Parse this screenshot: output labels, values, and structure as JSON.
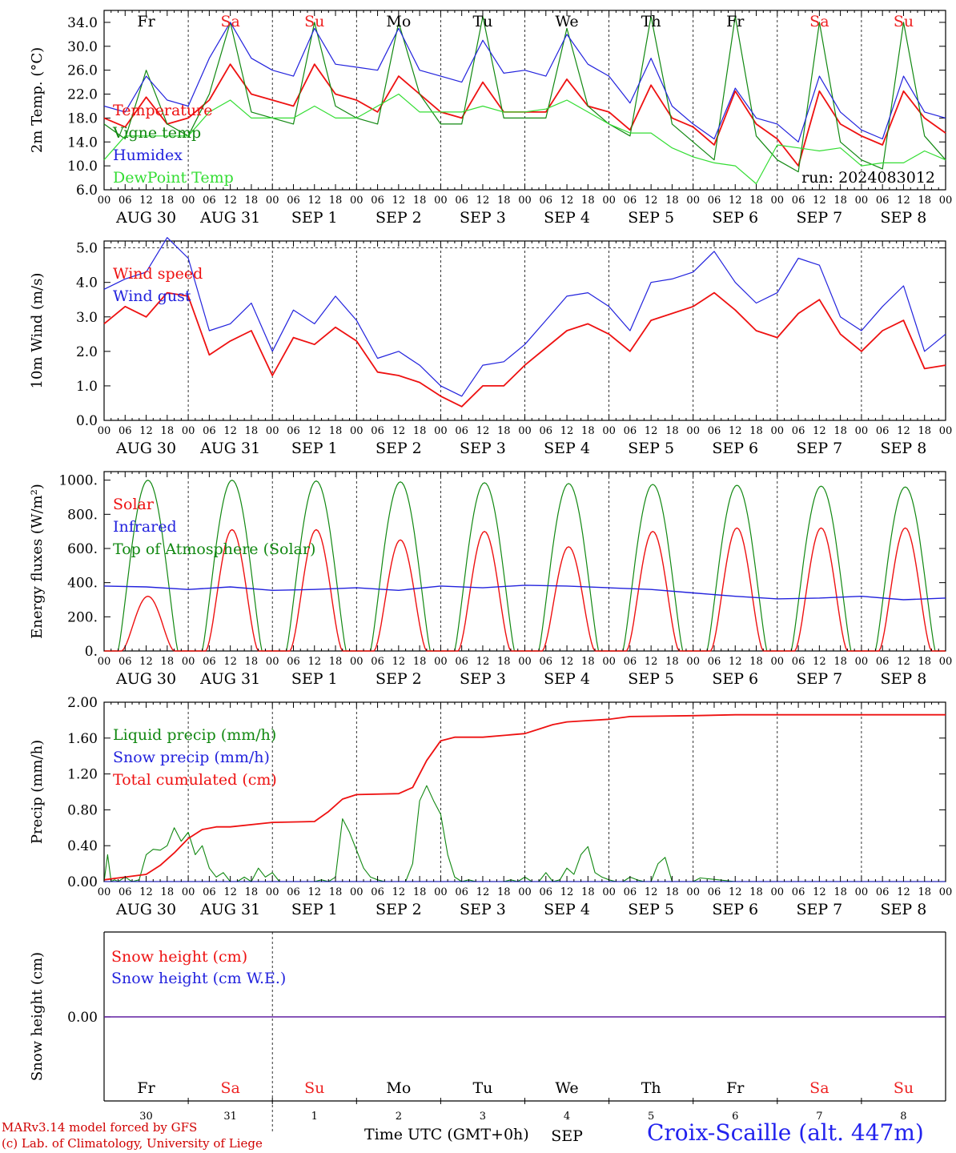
{
  "footer": {
    "credit_line1": "MARv3.14 model forced by GFS",
    "credit_line2": "(c) Lab. of Climatology, University of Liege",
    "x_caption": "Time UTC (GMT+0h)",
    "station": "Croix-Scaille (alt. 447m)",
    "station_color": "#2222ee",
    "credit_color": "#d00000"
  },
  "run_label": "run: 2024083012",
  "day_names": [
    "Fr",
    "Sa",
    "Su",
    "Mo",
    "Tu",
    "We",
    "Th",
    "Fr",
    "Sa",
    "Su"
  ],
  "weekend_days": [
    "Sa",
    "Su"
  ],
  "weekend_color": "#ee2222",
  "date_labels": [
    "AUG 30",
    "AUG 31",
    "SEP  1",
    "SEP  2",
    "SEP  3",
    "SEP  4",
    "SEP  5",
    "SEP  6",
    "SEP  7",
    "SEP  8"
  ],
  "hour_ticks": [
    "00",
    "06",
    "12",
    "18"
  ],
  "bottom_day_numbers": [
    "30",
    "31",
    "1",
    "2",
    "3",
    "4",
    "5",
    "6",
    "7",
    "8"
  ],
  "bottom_month_labels": [
    "SEP"
  ],
  "chart_data": [
    {
      "type": "line",
      "ylabel": "2m Temp. (°C)",
      "ylim": [
        6.0,
        36.0
      ],
      "yticks": [
        "6.0",
        "10.0",
        "14.0",
        "18.0",
        "22.0",
        "26.0",
        "30.0",
        "34.0"
      ],
      "x_hours": [
        0,
        6,
        12,
        18,
        24,
        30,
        36,
        42,
        48,
        54,
        60,
        66,
        72,
        78,
        84,
        90,
        96,
        102,
        108,
        114,
        120,
        126,
        132,
        138,
        144,
        150,
        156,
        162,
        168,
        174,
        180,
        186,
        192,
        198,
        204,
        210,
        216,
        222,
        228,
        234,
        240
      ],
      "series": [
        {
          "name": "Temperature",
          "color": "#ee1111",
          "values": [
            18,
            16.5,
            21.5,
            17,
            18,
            21,
            27,
            22,
            21,
            20,
            27,
            22,
            21,
            19,
            25,
            22,
            19,
            18,
            24,
            19,
            19,
            19,
            24.5,
            20,
            19,
            16,
            23.5,
            18,
            16.5,
            13.5,
            22.5,
            17,
            14.5,
            10,
            22.5,
            17,
            15,
            13.5,
            22.5,
            18,
            15.5
          ]
        },
        {
          "name": "Vigne temp",
          "color": "#118811",
          "values": [
            17,
            14.5,
            26,
            17,
            15,
            22,
            34,
            19,
            18,
            17,
            34,
            20,
            18,
            17,
            34,
            22,
            17,
            17,
            35,
            18,
            18,
            18,
            33,
            20,
            17,
            15,
            35,
            17,
            14,
            11,
            35,
            15,
            11,
            9,
            34,
            14,
            11,
            9.5,
            34,
            15,
            11
          ]
        },
        {
          "name": "Humidex",
          "color": "#2222dd",
          "values": [
            20,
            19,
            25,
            21,
            20,
            28,
            34,
            28,
            26,
            25,
            33,
            27,
            26.5,
            26,
            33,
            26,
            25,
            24,
            31,
            25.5,
            26,
            25,
            32,
            27,
            25,
            20.5,
            28,
            20,
            17,
            14.5,
            23,
            18,
            17,
            14,
            25,
            19,
            16,
            14.5,
            25,
            19,
            18
          ]
        },
        {
          "name": "DewPoint Temp",
          "color": "#33dd33",
          "values": [
            11,
            15,
            15,
            15,
            15,
            19,
            21,
            18,
            18,
            18,
            20,
            18,
            18,
            20,
            22,
            19,
            19,
            19,
            20,
            19,
            19,
            19.5,
            21,
            19,
            17,
            15.5,
            15.5,
            13,
            11.5,
            10.5,
            10,
            7,
            13.5,
            13,
            12.5,
            13,
            10,
            10.5,
            10.5,
            12.5,
            11
          ]
        }
      ],
      "annotation": "run: 2024083012"
    },
    {
      "type": "line",
      "ylabel": "10m Wind (m/s)",
      "ylim": [
        0.0,
        5.2
      ],
      "yticks": [
        "0.0",
        "1.0",
        "2.0",
        "3.0",
        "4.0",
        "5.0"
      ],
      "reference_line": 5.0,
      "x_hours": [
        0,
        6,
        12,
        18,
        24,
        30,
        36,
        42,
        48,
        54,
        60,
        66,
        72,
        78,
        84,
        90,
        96,
        102,
        108,
        114,
        120,
        126,
        132,
        138,
        144,
        150,
        156,
        162,
        168,
        174,
        180,
        186,
        192,
        198,
        204,
        210,
        216,
        222,
        228,
        234,
        240
      ],
      "series": [
        {
          "name": "Wind speed",
          "color": "#ee1111",
          "values": [
            2.8,
            3.3,
            3.0,
            3.7,
            3.6,
            1.9,
            2.3,
            2.6,
            1.3,
            2.4,
            2.2,
            2.7,
            2.3,
            1.4,
            1.3,
            1.1,
            0.7,
            0.4,
            1.0,
            1.0,
            1.6,
            2.1,
            2.6,
            2.8,
            2.5,
            2.0,
            2.9,
            3.1,
            3.3,
            3.7,
            3.2,
            2.6,
            2.4,
            3.1,
            3.5,
            2.5,
            2.0,
            2.6,
            2.9,
            1.5,
            1.6
          ]
        },
        {
          "name": "Wind gust",
          "color": "#2222dd",
          "values": [
            3.8,
            4.1,
            4.3,
            5.3,
            4.7,
            2.6,
            2.8,
            3.4,
            2.0,
            3.2,
            2.8,
            3.6,
            2.9,
            1.8,
            2.0,
            1.6,
            1.0,
            0.7,
            1.6,
            1.7,
            2.2,
            2.9,
            3.6,
            3.7,
            3.3,
            2.6,
            4.0,
            4.1,
            4.3,
            4.9,
            4.0,
            3.4,
            3.7,
            4.7,
            4.5,
            3.0,
            2.6,
            3.3,
            3.9,
            2.0,
            2.5
          ]
        }
      ]
    },
    {
      "type": "line",
      "ylabel": "Energy fluxes (W/m²)",
      "ylim": [
        0,
        1050
      ],
      "yticks": [
        "0.",
        "200.",
        "400.",
        "600.",
        "800.",
        "1000."
      ],
      "series": [
        {
          "name": "Solar",
          "color": "#ee1111",
          "daily_peaks": [
            320,
            710,
            710,
            650,
            700,
            610,
            700,
            720,
            720,
            720
          ]
        },
        {
          "name": "Infrared",
          "color": "#2222dd",
          "x_hours": [
            0,
            12,
            24,
            36,
            48,
            60,
            72,
            84,
            96,
            108,
            120,
            132,
            144,
            156,
            168,
            180,
            192,
            204,
            216,
            228,
            240
          ],
          "values": [
            380,
            375,
            360,
            375,
            355,
            360,
            370,
            355,
            380,
            370,
            385,
            380,
            370,
            360,
            340,
            320,
            305,
            310,
            320,
            300,
            310
          ]
        },
        {
          "name": "Top of Atmosphere (Solar)",
          "color": "#118811",
          "daily_peaks": [
            1000,
            1000,
            995,
            990,
            985,
            980,
            975,
            970,
            965,
            960
          ]
        }
      ]
    },
    {
      "type": "line",
      "ylabel": "Precip (mm/h)",
      "ylim": [
        0.0,
        2.0
      ],
      "yticks": [
        "0.00",
        "0.40",
        "0.80",
        "1.20",
        "1.60",
        "2.00"
      ],
      "series": [
        {
          "name": "Liquid precip (mm/h)",
          "color": "#118811",
          "x_hours": [
            0,
            1,
            2,
            3,
            4,
            6,
            8,
            10,
            12,
            14,
            16,
            18,
            20,
            22,
            24,
            26,
            28,
            30,
            32,
            34,
            36,
            38,
            40,
            42,
            44,
            46,
            48,
            50,
            52,
            54,
            56,
            58,
            60,
            62,
            64,
            66,
            68,
            70,
            72,
            74,
            76,
            78,
            80,
            82,
            84,
            86,
            88,
            90,
            92,
            94,
            96,
            98,
            100,
            102,
            104,
            106,
            108,
            110,
            112,
            114,
            116,
            118,
            120,
            122,
            124,
            126,
            128,
            130,
            132,
            134,
            136,
            138,
            140,
            142,
            144,
            146,
            148,
            150,
            152,
            154,
            156,
            158,
            160,
            162,
            164,
            166,
            168,
            170,
            180,
            240
          ],
          "values": [
            0,
            0.3,
            0,
            0.02,
            0,
            0.05,
            0,
            0.02,
            0.3,
            0.36,
            0.35,
            0.4,
            0.6,
            0.45,
            0.55,
            0.3,
            0.4,
            0.15,
            0.05,
            0.1,
            0,
            0,
            0.05,
            0,
            0.15,
            0.05,
            0.1,
            0,
            0,
            0,
            0,
            0,
            0,
            0.02,
            0,
            0.05,
            0.7,
            0.55,
            0.35,
            0.15,
            0.05,
            0.02,
            0,
            0,
            0,
            0,
            0.2,
            0.9,
            1.07,
            0.9,
            0.75,
            0.3,
            0.05,
            0,
            0.02,
            0,
            0,
            0,
            0,
            0,
            0.02,
            0,
            0.05,
            0,
            0,
            0.1,
            0,
            0.02,
            0.15,
            0.08,
            0.3,
            0.39,
            0.1,
            0.05,
            0.02,
            0,
            0,
            0.05,
            0.02,
            0,
            0,
            0.2,
            0.27,
            0,
            0,
            0,
            0,
            0.04,
            0,
            0
          ]
        },
        {
          "name": "Snow precip (mm/h)",
          "color": "#2222dd",
          "x_hours": [
            0,
            240
          ],
          "values": [
            0,
            0
          ]
        },
        {
          "name": "Total cumulated (cm)",
          "color": "#ee1111",
          "x_hours": [
            0,
            6,
            12,
            16,
            20,
            24,
            28,
            32,
            36,
            48,
            60,
            64,
            68,
            72,
            84,
            88,
            92,
            96,
            100,
            108,
            120,
            124,
            128,
            132,
            136,
            144,
            150,
            168,
            180,
            240
          ],
          "values": [
            0.02,
            0.05,
            0.08,
            0.18,
            0.32,
            0.48,
            0.58,
            0.61,
            0.61,
            0.66,
            0.67,
            0.78,
            0.92,
            0.97,
            0.98,
            1.05,
            1.35,
            1.57,
            1.61,
            1.61,
            1.65,
            1.7,
            1.75,
            1.78,
            1.79,
            1.81,
            1.84,
            1.85,
            1.86,
            1.86
          ]
        }
      ]
    },
    {
      "type": "line",
      "ylabel": "Snow height (cm)",
      "yticks": [
        "0.00"
      ],
      "series": [
        {
          "name": "Snow height (cm)",
          "color": "#ee1111",
          "x_hours": [
            0,
            240
          ],
          "values": [
            0,
            0
          ]
        },
        {
          "name": "Snow height (cm W.E.)",
          "color": "#2222dd",
          "x_hours": [
            0,
            240
          ],
          "values": [
            0,
            0
          ]
        }
      ]
    }
  ]
}
